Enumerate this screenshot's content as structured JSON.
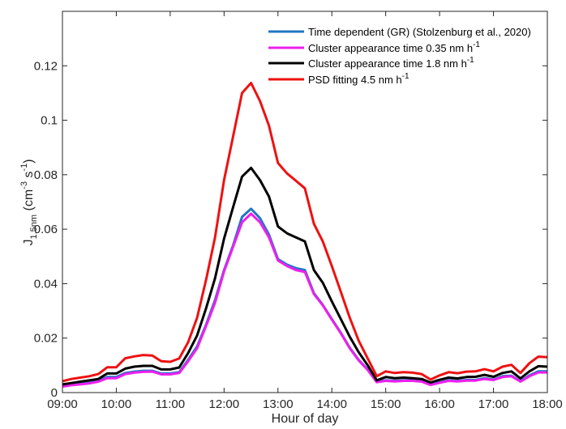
{
  "chart_data": {
    "type": "line",
    "xlabel": "Hour of day",
    "ylabel_main": "J",
    "ylabel_sub": "1.5nm",
    "ylabel_unit_pre": " (cm",
    "ylabel_exp1": "-3",
    "ylabel_mid": " s",
    "ylabel_exp2": "-1",
    "ylabel_post": ")",
    "xlim": [
      9,
      18
    ],
    "ylim": [
      0,
      0.14
    ],
    "xticks": [
      9,
      10,
      11,
      12,
      13,
      14,
      15,
      16,
      17,
      18
    ],
    "xtick_labels": [
      "09:00",
      "10:00",
      "11:00",
      "12:00",
      "13:00",
      "14:00",
      "15:00",
      "16:00",
      "17:00",
      "18:00"
    ],
    "yticks": [
      0,
      0.02,
      0.04,
      0.06,
      0.08,
      0.1,
      0.12
    ],
    "ytick_labels": [
      "0",
      "0.02",
      "0.04",
      "0.06",
      "0.08",
      "0.1",
      "0.12"
    ],
    "legend_position": "top-right",
    "x": [
      9.0,
      9.167,
      9.333,
      9.5,
      9.667,
      9.833,
      10.0,
      10.167,
      10.333,
      10.5,
      10.667,
      10.833,
      11.0,
      11.167,
      11.333,
      11.5,
      11.667,
      11.833,
      12.0,
      12.167,
      12.333,
      12.5,
      12.667,
      12.833,
      13.0,
      13.167,
      13.333,
      13.5,
      13.667,
      13.833,
      14.0,
      14.167,
      14.333,
      14.5,
      14.667,
      14.833,
      15.0,
      15.167,
      15.333,
      15.5,
      15.667,
      15.833,
      16.0,
      16.167,
      16.333,
      16.5,
      16.667,
      16.833,
      17.0,
      17.167,
      17.333,
      17.5,
      17.667,
      17.833,
      18.0
    ],
    "series": [
      {
        "name": "Time dependent (GR) (Stolzenburg et al., 2020)",
        "label_text": "Time dependent (GR) (Stolzenburg et al., 2020)",
        "color": "#1f77c4",
        "values": [
          0.0025,
          0.003,
          0.0033,
          0.0037,
          0.0043,
          0.0057,
          0.0057,
          0.0072,
          0.0077,
          0.008,
          0.008,
          0.007,
          0.007,
          0.0075,
          0.012,
          0.017,
          0.025,
          0.034,
          0.045,
          0.054,
          0.0645,
          0.0675,
          0.064,
          0.058,
          0.049,
          0.047,
          0.0457,
          0.045,
          0.0365,
          0.0322,
          0.027,
          0.022,
          0.0165,
          0.012,
          0.0085,
          0.004,
          0.0045,
          0.0043,
          0.0045,
          0.0045,
          0.0042,
          0.003,
          0.0038,
          0.0045,
          0.0043,
          0.0046,
          0.0046,
          0.0053,
          0.0048,
          0.006,
          0.0062,
          0.0042,
          0.0063,
          0.0078,
          0.0078
        ]
      },
      {
        "name": "Cluster appearance time 0.35 nm h",
        "label_text": "Cluster appearance time 0.35 nm h",
        "label_exp": "-1",
        "color": "#ee1fee",
        "values": [
          0.0022,
          0.0027,
          0.003,
          0.0034,
          0.004,
          0.0053,
          0.0053,
          0.0068,
          0.0073,
          0.0076,
          0.0077,
          0.0067,
          0.0067,
          0.0072,
          0.0115,
          0.0163,
          0.0245,
          0.033,
          0.0445,
          0.0535,
          0.0625,
          0.0657,
          0.0625,
          0.057,
          0.0485,
          0.0465,
          0.045,
          0.0443,
          0.0362,
          0.032,
          0.0268,
          0.0218,
          0.0163,
          0.0118,
          0.0083,
          0.0038,
          0.0043,
          0.0041,
          0.0043,
          0.0043,
          0.004,
          0.0028,
          0.0036,
          0.0043,
          0.0041,
          0.0044,
          0.0044,
          0.005,
          0.0046,
          0.0057,
          0.006,
          0.004,
          0.006,
          0.0074,
          0.0074
        ]
      },
      {
        "name": "Cluster appearance time 1.8 nm h",
        "label_text": "Cluster appearance time 1.8 nm h",
        "label_exp": "-1",
        "color": "#000000",
        "values": [
          0.003,
          0.0035,
          0.004,
          0.0045,
          0.005,
          0.007,
          0.007,
          0.0088,
          0.0095,
          0.0098,
          0.0098,
          0.0085,
          0.0085,
          0.0092,
          0.0145,
          0.021,
          0.031,
          0.042,
          0.0565,
          0.068,
          0.0793,
          0.0825,
          0.078,
          0.072,
          0.061,
          0.0585,
          0.057,
          0.0555,
          0.045,
          0.0403,
          0.0335,
          0.027,
          0.0205,
          0.0148,
          0.01,
          0.0045,
          0.0057,
          0.0053,
          0.0055,
          0.0053,
          0.005,
          0.0037,
          0.0047,
          0.0055,
          0.0052,
          0.0057,
          0.0058,
          0.0065,
          0.0058,
          0.0072,
          0.0078,
          0.0052,
          0.0078,
          0.0097,
          0.0095
        ]
      },
      {
        "name": "PSD fitting 4.5 nm h",
        "label_text": "PSD fitting 4.5 nm h",
        "label_exp": "-1",
        "color": "#ee1111",
        "values": [
          0.0042,
          0.005,
          0.0055,
          0.006,
          0.0068,
          0.0093,
          0.0093,
          0.0126,
          0.0133,
          0.0138,
          0.0136,
          0.0115,
          0.0113,
          0.0125,
          0.0185,
          0.0275,
          0.0415,
          0.057,
          0.078,
          0.094,
          0.11,
          0.1137,
          0.107,
          0.098,
          0.0843,
          0.0805,
          0.0778,
          0.075,
          0.062,
          0.0555,
          0.0465,
          0.037,
          0.0275,
          0.019,
          0.0125,
          0.006,
          0.0078,
          0.0072,
          0.0075,
          0.0073,
          0.0068,
          0.0048,
          0.0063,
          0.0075,
          0.0071,
          0.0077,
          0.0078,
          0.0086,
          0.0078,
          0.0095,
          0.0102,
          0.0072,
          0.0108,
          0.0132,
          0.013
        ]
      }
    ]
  }
}
